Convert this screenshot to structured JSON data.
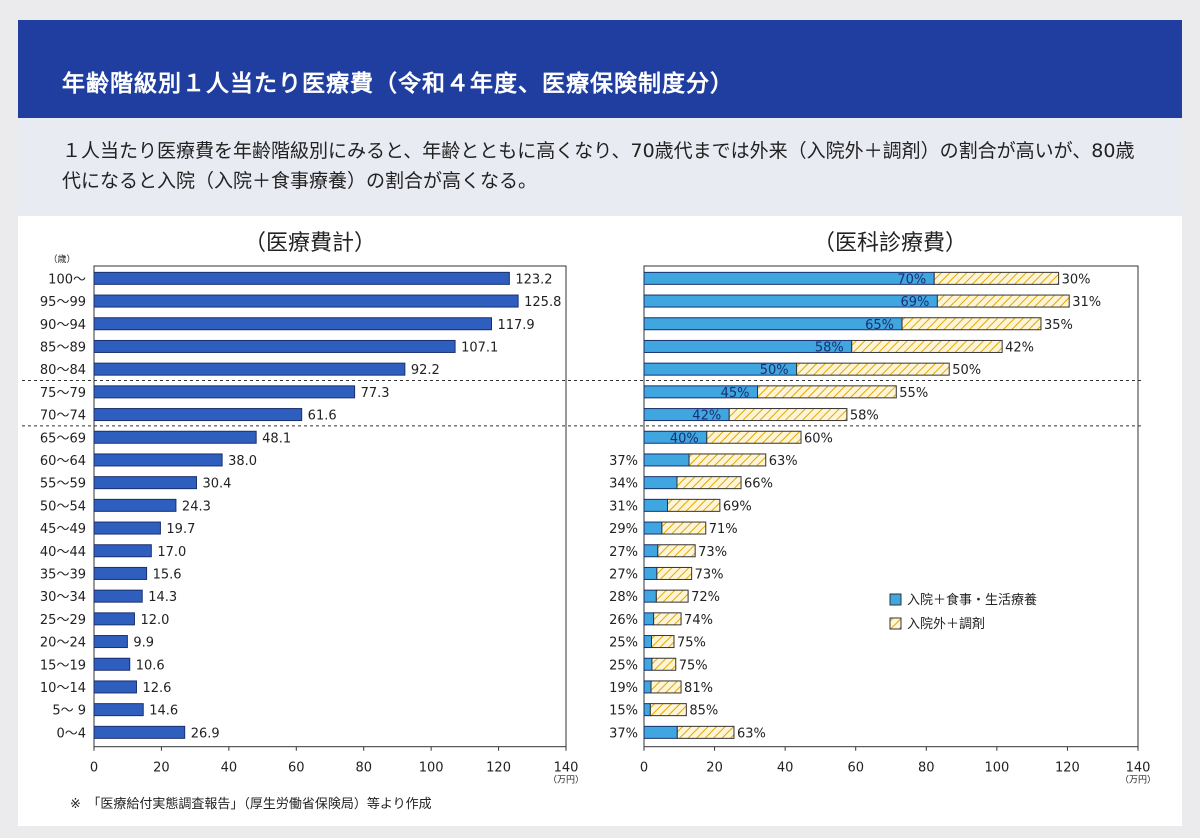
{
  "header": {
    "title": "年齢階級別１人当たり医療費（令和４年度、医療保険制度分）"
  },
  "summary": {
    "text": "１人当たり医療費を年齢階級別にみると、年齢とともに高くなり、70歳代までは外来（入院外＋調剤）の割合が高いが、80歳代になると入院（入院＋食事療養）の割合が高くなる。"
  },
  "note": "※　「医療給付実態調査報告」（厚生労働省保険局）等より作成",
  "colors": {
    "header": "#1f3ea0",
    "bar_total": "#2e5fbe",
    "bar_inpatient": "#3fa6e0",
    "hatch": "#f1c232"
  },
  "chart_data": [
    {
      "type": "bar",
      "orientation": "horizontal",
      "title": "（医療費計）",
      "y_unit_label": "（歳）",
      "x_unit_label": "（万円）",
      "xlim": [
        0,
        140
      ],
      "x_ticks": [
        "0",
        "20",
        "40",
        "60",
        "80",
        "100",
        "120",
        "140"
      ],
      "categories": [
        "100～",
        "95～99",
        "90～94",
        "85～89",
        "80～84",
        "75～79",
        "70～74",
        "65～69",
        "60～64",
        "55～59",
        "50～54",
        "45～49",
        "40～44",
        "35～39",
        "30～34",
        "25～29",
        "20～24",
        "15～19",
        "10～14",
        "5～ 9",
        "0～4"
      ],
      "values": [
        123.2,
        125.8,
        117.9,
        107.1,
        92.2,
        77.3,
        61.6,
        48.1,
        38.0,
        30.4,
        24.3,
        19.7,
        17.0,
        15.6,
        14.3,
        12.0,
        9.9,
        10.6,
        12.6,
        14.6,
        26.9
      ],
      "value_labels": [
        "123.2",
        "125.8",
        "117.9",
        "107.1",
        "92.2",
        "77.3",
        "61.6",
        "48.1",
        "38.0",
        "30.4",
        "24.3",
        "19.7",
        "17.0",
        "15.6",
        "14.3",
        "12.0",
        "9.9",
        "10.6",
        "12.6",
        "14.6",
        "26.9"
      ]
    },
    {
      "type": "bar",
      "orientation": "horizontal",
      "stacked": true,
      "title": "（医科診療費）",
      "x_unit_label": "（万円）",
      "xlim": [
        0,
        140
      ],
      "x_ticks": [
        "0",
        "20",
        "40",
        "60",
        "80",
        "100",
        "120",
        "140"
      ],
      "categories": [
        "100～",
        "95～99",
        "90～94",
        "85～89",
        "80～84",
        "75～79",
        "70～74",
        "65～69",
        "60～64",
        "55～59",
        "50～54",
        "45～49",
        "40～44",
        "35～39",
        "30～34",
        "25～29",
        "20～24",
        "15～19",
        "10～14",
        "5～ 9",
        "0～4"
      ],
      "totals": [
        117.5,
        120.5,
        112.5,
        101.5,
        86.5,
        71.5,
        57.5,
        44.5,
        34.5,
        27.5,
        21.5,
        17.5,
        14.5,
        13.5,
        12.5,
        10.5,
        8.5,
        9.0,
        10.5,
        12.0,
        25.5
      ],
      "inpatient_share": [
        70,
        69,
        65,
        58,
        50,
        45,
        42,
        40,
        37,
        34,
        31,
        29,
        27,
        27,
        28,
        26,
        25,
        25,
        19,
        15,
        37
      ],
      "inpatient_labels": [
        "70%",
        "69%",
        "65%",
        "58%",
        "50%",
        "45%",
        "42%",
        "40%",
        "37%",
        "34%",
        "31%",
        "29%",
        "27%",
        "27%",
        "28%",
        "26%",
        "25%",
        "25%",
        "19%",
        "15%",
        "37%"
      ],
      "outpatient_labels": [
        "30%",
        "31%",
        "35%",
        "42%",
        "50%",
        "55%",
        "58%",
        "60%",
        "63%",
        "66%",
        "69%",
        "71%",
        "73%",
        "73%",
        "72%",
        "74%",
        "75%",
        "75%",
        "81%",
        "85%",
        "63%"
      ],
      "legend": {
        "placement": "center-right",
        "entries": [
          {
            "name": "入院＋食事・生活療養",
            "style": "solid"
          },
          {
            "name": "入院外＋調剤",
            "style": "hatched"
          }
        ]
      }
    }
  ]
}
